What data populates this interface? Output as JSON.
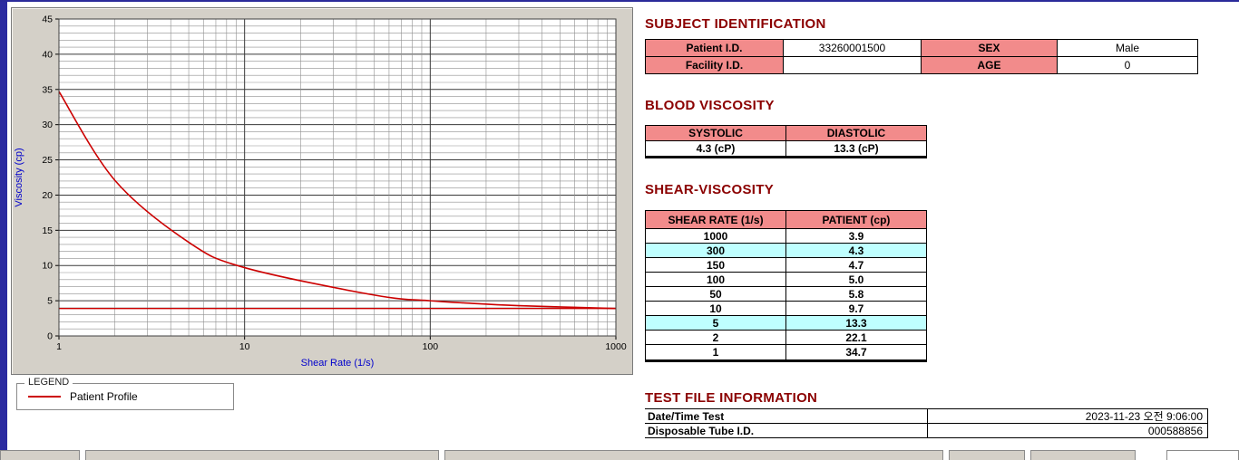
{
  "colors": {
    "heading": "#8B0000",
    "header_bg": "#F28B8B",
    "highlight_bg": "#BFFFFF",
    "curve": "#CC0000",
    "axis_label": "#0000CC"
  },
  "legend": {
    "box_label": "LEGEND",
    "series_label": "Patient Profile",
    "line_color": "#CC0000"
  },
  "subject_identification": {
    "title": "SUBJECT IDENTIFICATION",
    "rows": [
      {
        "label1": "Patient I.D.",
        "value1": "33260001500",
        "label2": "SEX",
        "value2": "Male"
      },
      {
        "label1": "Facility I.D.",
        "value1": "",
        "label2": "AGE",
        "value2": "0"
      }
    ]
  },
  "blood_viscosity": {
    "title": "BLOOD VISCOSITY",
    "headers": [
      "SYSTOLIC",
      "DIASTOLIC"
    ],
    "values": [
      "4.3 (cP)",
      "13.3 (cP)"
    ]
  },
  "shear_viscosity": {
    "title": "SHEAR-VISCOSITY",
    "headers": [
      "SHEAR RATE (1/s)",
      "PATIENT (cp)"
    ],
    "rows": [
      {
        "rate": "1000",
        "value": "3.9",
        "highlight": false
      },
      {
        "rate": "300",
        "value": "4.3",
        "highlight": true
      },
      {
        "rate": "150",
        "value": "4.7",
        "highlight": false
      },
      {
        "rate": "100",
        "value": "5.0",
        "highlight": false
      },
      {
        "rate": "50",
        "value": "5.8",
        "highlight": false
      },
      {
        "rate": "10",
        "value": "9.7",
        "highlight": false
      },
      {
        "rate": "5",
        "value": "13.3",
        "highlight": true
      },
      {
        "rate": "2",
        "value": "22.1",
        "highlight": false
      },
      {
        "rate": "1",
        "value": "34.7",
        "highlight": false
      }
    ]
  },
  "test_file_information": {
    "title": "TEST FILE INFORMATION",
    "rows": [
      {
        "label": "Date/Time Test",
        "value": "2023-11-23  오전 9:06:00"
      },
      {
        "label": "Disposable Tube I.D.",
        "value": "000588856"
      }
    ]
  },
  "chart_data": {
    "type": "line",
    "title": "",
    "xlabel": "Shear Rate (1/s)",
    "ylabel": "Viscosity (cp)",
    "x_scale": "log",
    "xlim": [
      1,
      1000
    ],
    "ylim": [
      0,
      45
    ],
    "y_tick_step": 5,
    "x_ticks": [
      1,
      10,
      100,
      1000
    ],
    "grid": true,
    "legend_position": "below-left",
    "series": [
      {
        "name": "Patient Profile",
        "color": "#CC0000",
        "x": [
          1,
          2,
          5,
          10,
          50,
          100,
          150,
          300,
          1000
        ],
        "y": [
          34.7,
          22.1,
          13.3,
          9.7,
          5.8,
          5.0,
          4.7,
          4.3,
          3.9
        ]
      }
    ],
    "reference_line": {
      "y": 3.9,
      "color": "#CC0000"
    }
  }
}
